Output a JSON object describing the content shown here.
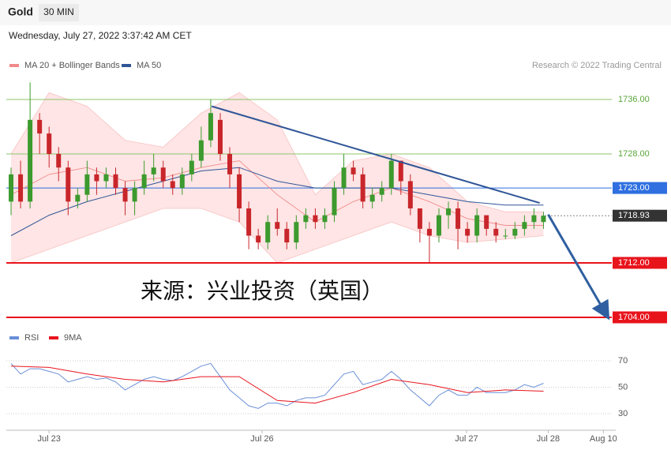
{
  "header": {
    "title": "Gold",
    "timeframe": "30 MIN",
    "datetime": "Wednesday, July 27, 2022 3:37:42 AM CET"
  },
  "chart_data": [
    {
      "type": "candlestick",
      "credit": "Research © 2022 Trading Central",
      "annotation": "来源：兴业投资（英国）",
      "up_color": "#3c9a2e",
      "down_color": "#c8262b",
      "open": [
        1721,
        1725,
        1721,
        1733,
        1731,
        1728,
        1726,
        1721,
        1722,
        1725,
        1724,
        1725,
        1723,
        1721,
        1723,
        1725,
        1726,
        1724,
        1723,
        1725,
        1727,
        1730,
        1733,
        1728,
        1725,
        1720,
        1716,
        1715,
        1718,
        1717,
        1715,
        1718,
        1719,
        1718,
        1719,
        1723,
        1726,
        1725,
        1721,
        1722,
        1723,
        1727,
        1724,
        1720,
        1717,
        1716,
        1719,
        1720,
        1717,
        1716,
        1719,
        1717,
        1716,
        1716,
        1717,
        1718,
        1718
      ],
      "high": [
        1726,
        1727,
        1738.5,
        1734,
        1732,
        1729,
        1727,
        1723,
        1727,
        1726,
        1726,
        1726,
        1724,
        1724,
        1727,
        1728,
        1727,
        1725,
        1726,
        1728,
        1732,
        1736,
        1734,
        1729,
        1726,
        1721,
        1717,
        1719,
        1720,
        1718,
        1719,
        1720,
        1720,
        1720,
        1724,
        1728,
        1727,
        1726,
        1723,
        1724,
        1728,
        1727,
        1725,
        1720,
        1718,
        1720,
        1721,
        1721,
        1718,
        1720,
        1719,
        1718,
        1717,
        1718,
        1719,
        1720,
        1719.5
      ],
      "low": [
        1719,
        1720,
        1720,
        1728,
        1726,
        1724,
        1719,
        1720,
        1721,
        1722,
        1723,
        1722,
        1719,
        1719,
        1722,
        1724,
        1723,
        1722,
        1722,
        1724,
        1726,
        1729,
        1727,
        1723,
        1718,
        1714,
        1714,
        1714,
        1716,
        1714,
        1714,
        1717,
        1717,
        1717,
        1718,
        1722,
        1724,
        1720,
        1720,
        1721,
        1722,
        1722,
        1719,
        1715,
        1712,
        1715,
        1717,
        1714,
        1715,
        1715,
        1716,
        1715,
        1715.5,
        1715.5,
        1716,
        1717,
        1717
      ],
      "close": [
        1725,
        1721,
        1733,
        1731,
        1728,
        1726,
        1721,
        1722,
        1725,
        1724,
        1725,
        1723,
        1721,
        1723,
        1725,
        1726,
        1724,
        1723,
        1725,
        1727,
        1730,
        1734,
        1728,
        1725,
        1720,
        1716,
        1715,
        1718,
        1717,
        1715,
        1718,
        1719,
        1718,
        1719,
        1723,
        1726,
        1725,
        1721,
        1722,
        1723,
        1727,
        1724,
        1720,
        1717,
        1716,
        1719,
        1720,
        1717,
        1716,
        1719,
        1717,
        1716,
        1716,
        1717,
        1718,
        1719,
        1718.93
      ],
      "series": [
        {
          "name": "MA 20 + Bollinger Bands",
          "color": "#f08a8a",
          "band_color": "#ffdede",
          "x": [
            0,
            4,
            8,
            12,
            16,
            20,
            24,
            28,
            32,
            36,
            40,
            44,
            48,
            52,
            56
          ],
          "values": [
            1722,
            1725,
            1726,
            1724,
            1724.5,
            1726,
            1727,
            1722,
            1718,
            1721,
            1723,
            1721,
            1718.5,
            1717.5,
            1717.5
          ],
          "upper": [
            1728,
            1737,
            1735,
            1730,
            1729,
            1734,
            1737,
            1733,
            1722,
            1727,
            1728,
            1726,
            1721,
            1719.5,
            1719.5
          ],
          "lower": [
            1712,
            1714,
            1716,
            1718,
            1720,
            1720,
            1718,
            1712,
            1714,
            1716,
            1718,
            1716,
            1715,
            1715.5,
            1716
          ]
        },
        {
          "name": "MA 50",
          "color": "#2f5597",
          "x": [
            0,
            4,
            8,
            12,
            16,
            20,
            24,
            28,
            32,
            36,
            40,
            44,
            48,
            52,
            56
          ],
          "values": [
            1716,
            1719,
            1721,
            1722.5,
            1724,
            1725.5,
            1726,
            1724,
            1723,
            1723,
            1723,
            1722,
            1721,
            1720.5,
            1720.5
          ]
        }
      ],
      "levels": [
        {
          "value": 1736,
          "label": "1736.00",
          "color": "#8cc46a"
        },
        {
          "value": 1728,
          "label": "1728.00",
          "color": "#8cc46a"
        },
        {
          "value": 1723,
          "label": "1723.00",
          "color": "#2f6fe0"
        },
        {
          "value": 1718.93,
          "color": "#333333"
        },
        {
          "value": 1712,
          "label": "1712.00",
          "color": "#e8141c"
        },
        {
          "value": 1704,
          "label": "1704.00",
          "color": "#e8141c"
        }
      ],
      "trendline": {
        "x": [
          21.1,
          55.6
        ],
        "y": [
          1735,
          1720.8
        ],
        "color": "#2f5597"
      },
      "arrow": {
        "x": [
          56.5,
          62.7
        ],
        "y": [
          1719.1,
          1704.2
        ],
        "color": "#2f5fa0"
      },
      "xlim": [
        -0.5,
        63.6
      ],
      "ylim": [
        1703,
        1739.5
      ],
      "xticks": [
        {
          "value": 4,
          "label": "Jul 23"
        },
        {
          "value": 26.4,
          "label": "Jul 26"
        },
        {
          "value": 47.9,
          "label": "Jul 27"
        },
        {
          "value": 56.5,
          "label": "Jul 28"
        },
        {
          "value": 62.3,
          "label": "Aug 10"
        }
      ]
    },
    {
      "type": "line",
      "series": [
        {
          "name": "RSI",
          "color": "#6a8fd8",
          "values": [
            68,
            60,
            64,
            64,
            62,
            60,
            54,
            56,
            58,
            56,
            57,
            54,
            48,
            52,
            56,
            58,
            56,
            55,
            58,
            62,
            66,
            68,
            58,
            48,
            42,
            36,
            34,
            38,
            38,
            36,
            40,
            42,
            42,
            44,
            52,
            60,
            62,
            52,
            54,
            56,
            62,
            56,
            48,
            42,
            36,
            44,
            48,
            44,
            44,
            50,
            46,
            46,
            46,
            48,
            52,
            50,
            53
          ]
        },
        {
          "name": "9MA",
          "color": "#e8141c",
          "x": [
            0,
            4,
            8,
            12,
            16,
            20,
            24,
            28,
            32,
            36,
            40,
            44,
            48,
            52,
            56
          ],
          "values": [
            66,
            65,
            60,
            56,
            54,
            58,
            58,
            40,
            38,
            46,
            56,
            52,
            46,
            48,
            47
          ]
        }
      ],
      "xlim": [
        -0.5,
        63.6
      ],
      "ylim": [
        26,
        80
      ],
      "yticks": [
        30,
        50,
        70
      ]
    }
  ]
}
